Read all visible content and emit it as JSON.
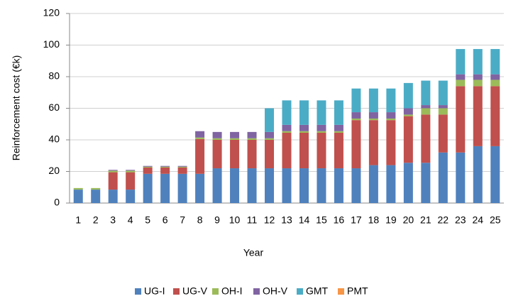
{
  "chart_data": {
    "type": "stacked_bar",
    "x_label": "Year",
    "y_label": "Reinforcement cost (€k)",
    "categories": [
      "1",
      "2",
      "3",
      "4",
      "5",
      "6",
      "7",
      "8",
      "9",
      "10",
      "11",
      "12",
      "13",
      "14",
      "15",
      "16",
      "17",
      "18",
      "19",
      "20",
      "21",
      "22",
      "23",
      "24",
      "25"
    ],
    "series": [
      {
        "name": "UG-I",
        "color": "#4f81bd",
        "values": [
          8.5,
          8.5,
          8.5,
          8.5,
          18.5,
          18.5,
          18.5,
          18.5,
          22,
          22,
          22,
          22,
          22,
          22,
          22,
          22,
          22,
          24,
          24,
          25.5,
          25.5,
          32,
          32,
          36,
          36
        ]
      },
      {
        "name": "UG-V",
        "color": "#c0504d",
        "values": [
          0,
          0,
          11,
          11,
          4,
          4,
          4,
          22,
          18,
          18,
          18,
          18,
          22.5,
          22.5,
          22.5,
          22.5,
          30.5,
          28.5,
          28.5,
          29.5,
          30.5,
          24,
          42,
          38,
          38
        ]
      },
      {
        "name": "OH-I",
        "color": "#9bbb59",
        "values": [
          1,
          1,
          1,
          1,
          0.5,
          0.5,
          0.5,
          1,
          1,
          1,
          1,
          1,
          1,
          1,
          1,
          1,
          1,
          1,
          1,
          1,
          4,
          4,
          4,
          4,
          4
        ]
      },
      {
        "name": "OH-V",
        "color": "#8064a2",
        "values": [
          0,
          0,
          0.5,
          0.5,
          0.5,
          0.5,
          0.5,
          4,
          4,
          4,
          4,
          4,
          4,
          4,
          4,
          4,
          4,
          4,
          4,
          4,
          2,
          2,
          3.5,
          3.5,
          3.5
        ]
      },
      {
        "name": "GMT",
        "color": "#4bacc6",
        "values": [
          0,
          0,
          0,
          0,
          0,
          0,
          0,
          0,
          0,
          0,
          0,
          15,
          15.5,
          15.5,
          15.5,
          15.5,
          15,
          15,
          15,
          16,
          15.5,
          15.5,
          16,
          16,
          16
        ]
      },
      {
        "name": "PMT",
        "color": "#f79646",
        "values": [
          0,
          0,
          0,
          0,
          0,
          0,
          0,
          0,
          0,
          0,
          0,
          0,
          0,
          0,
          0,
          0,
          0,
          0,
          0,
          0,
          0,
          0,
          0,
          0,
          0
        ]
      }
    ],
    "ylim": [
      0,
      120
    ],
    "yticks": [
      0,
      20,
      40,
      60,
      80,
      100,
      120
    ],
    "grid": true,
    "legend": "bottom"
  }
}
